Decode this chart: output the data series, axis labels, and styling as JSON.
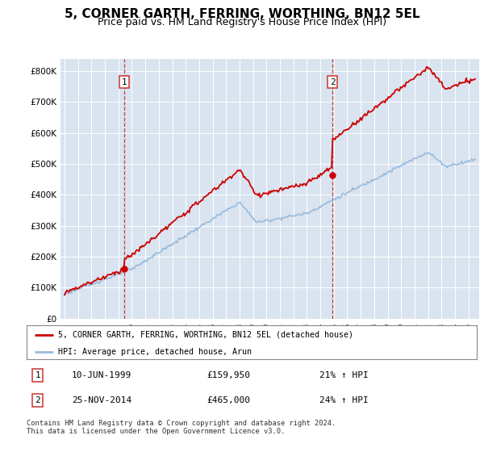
{
  "title": "5, CORNER GARTH, FERRING, WORTHING, BN12 5EL",
  "subtitle": "Price paid vs. HM Land Registry's House Price Index (HPI)",
  "ylabel_ticks": [
    "£0",
    "£100K",
    "£200K",
    "£300K",
    "£400K",
    "£500K",
    "£600K",
    "£700K",
    "£800K"
  ],
  "ytick_vals": [
    0,
    100000,
    200000,
    300000,
    400000,
    500000,
    600000,
    700000,
    800000
  ],
  "ylim": [
    0,
    840000
  ],
  "xlim_start": 1994.7,
  "xlim_end": 2025.8,
  "background_color": "#d9e4f0",
  "marker1_x": 1999.44,
  "marker1_y": 159950,
  "marker1_date": "10-JUN-1999",
  "marker1_price": "£159,950",
  "marker1_hpi": "21% ↑ HPI",
  "marker2_x": 2014.9,
  "marker2_y": 465000,
  "marker2_date": "25-NOV-2014",
  "marker2_price": "£465,000",
  "marker2_hpi": "24% ↑ HPI",
  "line1_color": "#cc0000",
  "line2_color": "#99bbdd",
  "legend_line1": "5, CORNER GARTH, FERRING, WORTHING, BN12 5EL (detached house)",
  "legend_line2": "HPI: Average price, detached house, Arun",
  "footnote": "Contains HM Land Registry data © Crown copyright and database right 2024.\nThis data is licensed under the Open Government Licence v3.0.",
  "title_fontsize": 11,
  "subtitle_fontsize": 9,
  "tick_fontsize": 7.5
}
